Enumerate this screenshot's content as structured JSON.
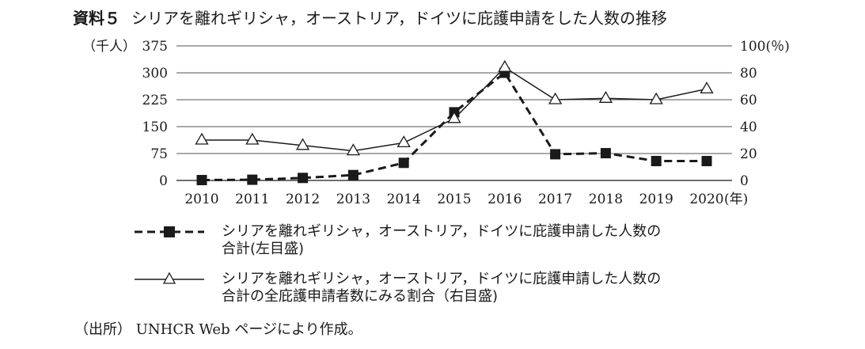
{
  "heading": {
    "label": "資料５",
    "text": "シリアを離れギリシャ，オーストリア，ドイツに庇護申請をした人数の推移"
  },
  "chart_data": {
    "type": "line",
    "x": [
      "2010",
      "2011",
      "2012",
      "2013",
      "2014",
      "2015",
      "2016",
      "2017",
      "2018",
      "2019",
      "2020"
    ],
    "x_unit": "(年)",
    "left_axis": {
      "unit": "（千人）",
      "ylim": [
        0,
        375
      ],
      "ticks": [
        "0",
        "75",
        "150",
        "225",
        "300",
        "375"
      ]
    },
    "right_axis": {
      "unit": "100(％)",
      "ylim": [
        0,
        100
      ],
      "ticks": [
        "0",
        "20",
        "40",
        "60",
        "80"
      ]
    },
    "grid": true,
    "series": [
      {
        "name": "シリアを離れギリシャ，オーストリア，ドイツに庇護申請した人数の合計(左目盛)",
        "axis": "left",
        "style": "dashed",
        "marker": "filled-square",
        "color": "#1a1a1a",
        "values": [
          1,
          2,
          7,
          15,
          49,
          190,
          300,
          73,
          76,
          54,
          54
        ]
      },
      {
        "name": "シリアを離れギリシャ，オーストリア，ドイツに庇護申請した人数の合計の全庇護申請者数にみる割合（右目盛)",
        "axis": "right",
        "style": "solid",
        "marker": "open-triangle",
        "color": "#1a1a1a",
        "values": [
          30,
          30,
          26,
          22,
          28,
          46,
          84,
          60,
          61,
          60,
          68
        ]
      }
    ]
  },
  "legend": {
    "items": [
      {
        "line1": "シリアを離れギリシャ，オーストリア，ドイツに庇護申請した人数の",
        "line2": "合計(左目盛)"
      },
      {
        "line1": "シリアを離れギリシャ，オーストリア，ドイツに庇護申請した人数の",
        "line2": "合計の全庇護申請者数にみる割合（右目盛)"
      }
    ]
  },
  "source": "（出所） UNHCR Web ページにより作成。"
}
